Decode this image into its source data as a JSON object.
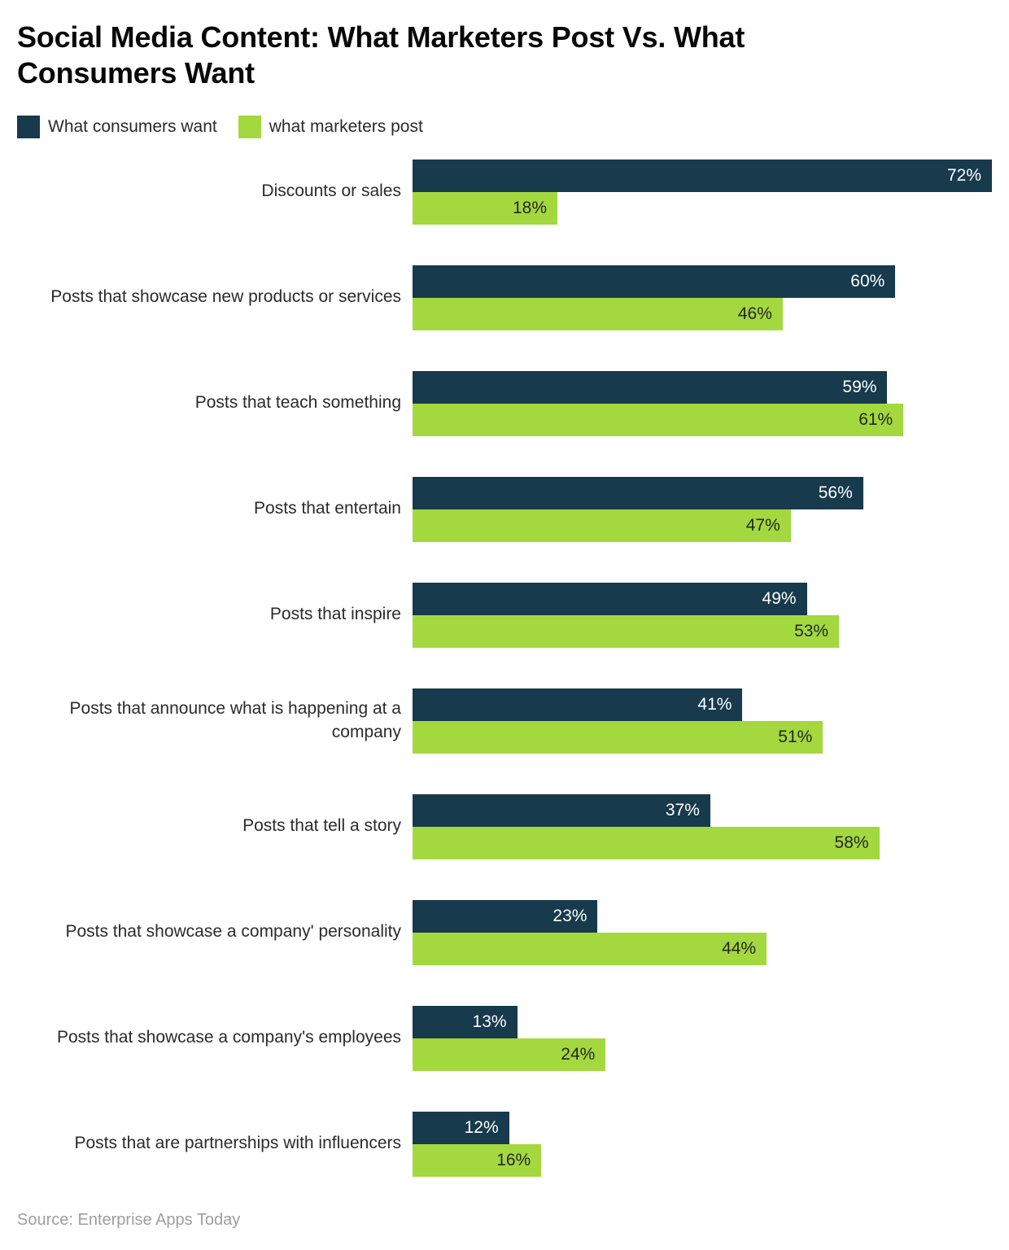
{
  "title": "Social Media Content: What Marketers Post Vs. What Consumers Want",
  "source": "Source: Enterprise Apps Today",
  "legend": [
    {
      "label": "What consumers want",
      "color": "#173a4c"
    },
    {
      "label": "what marketers post",
      "color": "#a3d83e"
    }
  ],
  "chart_data": {
    "type": "bar",
    "orientation": "horizontal",
    "title": "Social Media Content: What Marketers Post Vs. What Consumers Want",
    "value_suffix": "%",
    "xlim": [
      0,
      72
    ],
    "grid": false,
    "legend_position": "top-left",
    "categories": [
      "Discounts or sales",
      "Posts that showcase new products or services",
      "Posts that teach something",
      "Posts that entertain",
      "Posts that inspire",
      "Posts that announce what is happening at a company",
      "Posts that tell a story",
      "Posts that showcase a company' personality",
      "Posts that showcase a company's employees",
      "Posts that are partnerships with influencers"
    ],
    "series": [
      {
        "name": "What consumers want",
        "color": "#173a4c",
        "label_color": "#ffffff",
        "values": [
          72,
          60,
          59,
          56,
          49,
          41,
          37,
          23,
          13,
          12
        ]
      },
      {
        "name": "what marketers post",
        "color": "#a3d83e",
        "label_color": "#262626",
        "values": [
          18,
          46,
          61,
          47,
          53,
          51,
          58,
          44,
          24,
          16
        ]
      }
    ]
  }
}
